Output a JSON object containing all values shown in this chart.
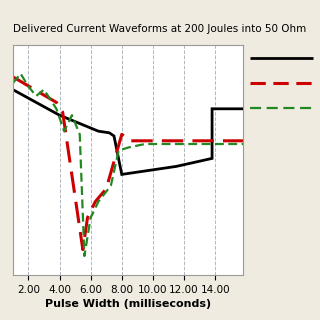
{
  "title": "Delivered Current Waveforms at 200 Joules into 50 Ohm",
  "xlabel": "Pulse Width (milliseconds)",
  "bg_color": "#f0ebe0",
  "plot_bg_color": "#ffffff",
  "grid_color": "#b0b8c0",
  "xlim": [
    1.0,
    15.8
  ],
  "ylim": [
    -30,
    42
  ],
  "xticks": [
    2.0,
    4.0,
    6.0,
    8.0,
    10.0,
    12.0,
    14.0
  ],
  "black_line": {
    "x": [
      1.0,
      4.0,
      4.0,
      6.5,
      6.5,
      7.2,
      7.2,
      7.5,
      7.5,
      8.0,
      8.0,
      11.5,
      11.5,
      13.8,
      13.8,
      15.8
    ],
    "y": [
      28,
      20,
      20,
      15,
      15,
      14.5,
      14.5,
      13.5,
      13.5,
      1.5,
      1.5,
      4.0,
      4.0,
      6.5,
      22.0,
      22.0
    ],
    "color": "#000000",
    "linewidth": 2.0
  },
  "red_line": {
    "x": [
      1.0,
      3.8,
      3.8,
      4.2,
      4.2,
      5.5,
      5.5,
      5.8,
      5.8,
      6.3,
      6.3,
      7.0,
      7.0,
      8.0,
      8.0,
      8.6,
      8.6,
      9.5,
      9.5,
      15.8
    ],
    "y": [
      32,
      24,
      24,
      21,
      21,
      -22,
      -22,
      -12,
      -12,
      -7,
      -7,
      -3,
      -3,
      14,
      14,
      12,
      12,
      12,
      12,
      12
    ],
    "color": "#cc0000",
    "linewidth": 2.2
  },
  "green_line": {
    "x": [
      1.0,
      1.5,
      1.5,
      2.0,
      2.0,
      2.5,
      2.5,
      3.0,
      3.0,
      3.8,
      3.8,
      4.3,
      4.3,
      4.8,
      4.8,
      5.3,
      5.3,
      5.6,
      5.6,
      6.0,
      6.0,
      6.5,
      6.5,
      7.3,
      7.3,
      7.8,
      7.8,
      8.5,
      8.5,
      9.5,
      9.5,
      15.8
    ],
    "y": [
      30,
      33,
      33,
      29,
      29,
      26,
      26,
      28,
      28,
      22,
      22,
      15,
      15,
      20,
      20,
      14,
      14,
      -24,
      -24,
      -12,
      -12,
      -7,
      -7,
      -2,
      -2,
      9,
      9,
      10,
      10,
      11,
      11,
      11
    ],
    "color": "#228822",
    "linewidth": 1.6
  },
  "legend_elements": [
    {
      "color": "#000000",
      "linewidth": 2.0,
      "linestyle": "solid"
    },
    {
      "color": "#cc0000",
      "linewidth": 2.2,
      "linestyle": "dashed"
    },
    {
      "color": "#228822",
      "linewidth": 1.6,
      "linestyle": "dashed"
    }
  ]
}
